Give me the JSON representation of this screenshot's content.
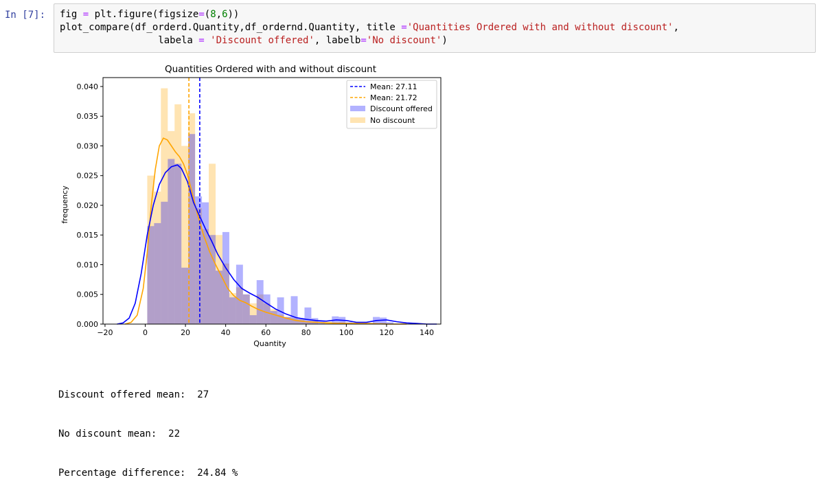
{
  "cell": {
    "prompt": "In [7]:",
    "code_lines": [
      [
        [
          "fig ",
          ""
        ],
        [
          "=",
          "kw"
        ],
        [
          " plt.figure(figsize",
          ""
        ],
        [
          "=",
          "kw"
        ],
        [
          "(",
          ""
        ],
        [
          "8",
          "num"
        ],
        [
          ",",
          ""
        ],
        [
          "6",
          "num"
        ],
        [
          "))",
          ""
        ]
      ],
      [
        [
          "plot_compare(df_orderd.Quantity,df_ordernd.Quantity, title ",
          ""
        ],
        [
          "=",
          "kw"
        ],
        [
          "'Quantities Ordered with and without discount'",
          "str"
        ],
        [
          ",",
          ""
        ]
      ],
      [
        [
          "                 labela ",
          ""
        ],
        [
          "=",
          "kw"
        ],
        [
          " ",
          ""
        ],
        [
          "'Discount offered'",
          "str"
        ],
        [
          ", labelb",
          ""
        ],
        [
          "=",
          "kw"
        ],
        [
          "'No discount'",
          "str"
        ],
        [
          ")",
          ""
        ]
      ]
    ]
  },
  "output_text": {
    "line1": "Discount offered mean:  27",
    "line2": "No discount mean:  22",
    "line3": "Percentage difference:  24.84 %"
  },
  "colors": {
    "discount": "#0000ff",
    "nodiscount": "#ffa500",
    "prompt": "#303f9f"
  },
  "chart_data": {
    "type": "bar",
    "title": "Quantities Ordered with and without discount",
    "xlabel": "Quantity",
    "ylabel": "frequency",
    "xlim": [
      -21,
      147
    ],
    "ylim": [
      0,
      0.0415
    ],
    "xticks": [
      -20,
      0,
      20,
      40,
      60,
      80,
      100,
      120,
      140
    ],
    "xtick_labels": [
      "−20",
      "0",
      "20",
      "40",
      "60",
      "80",
      "100",
      "120",
      "140"
    ],
    "yticks": [
      0.0,
      0.005,
      0.01,
      0.015,
      0.02,
      0.025,
      0.03,
      0.035,
      0.04
    ],
    "ytick_labels": [
      "0.000",
      "0.005",
      "0.010",
      "0.015",
      "0.020",
      "0.025",
      "0.030",
      "0.035",
      "0.040"
    ],
    "legend_position": "top-right",
    "legend": [
      "Mean: 27.11",
      "Mean: 21.72",
      "Discount offered",
      "No discount"
    ],
    "hist_bin_width": 3.4,
    "series": [
      {
        "name": "Discount offered",
        "mean": 27.11,
        "hist": [
          [
            1,
            0.0165
          ],
          [
            4.4,
            0.017
          ],
          [
            7.8,
            0.0206
          ],
          [
            11.2,
            0.0278
          ],
          [
            14.6,
            0.027
          ],
          [
            18,
            0.0095
          ],
          [
            21.4,
            0.032
          ],
          [
            24.8,
            0.0215
          ],
          [
            28.2,
            0.0205
          ],
          [
            31.6,
            0.015
          ],
          [
            35,
            0.009
          ],
          [
            38.4,
            0.0155
          ],
          [
            41.8,
            0.0045
          ],
          [
            45.2,
            0.01
          ],
          [
            48.6,
            0.005
          ],
          [
            52,
            0.0015
          ],
          [
            55.4,
            0.0074
          ],
          [
            58.8,
            0.005
          ],
          [
            62.2,
            0.0022
          ],
          [
            65.6,
            0.0045
          ],
          [
            69,
            0.0012
          ],
          [
            72.4,
            0.0047
          ],
          [
            75.8,
            0.001
          ],
          [
            79.2,
            0.0028
          ],
          [
            82.6,
            0.001
          ],
          [
            86,
            0.0005
          ],
          [
            92.8,
            0.0013
          ],
          [
            96.2,
            0.0012
          ],
          [
            99.6,
            0.0003
          ],
          [
            113.2,
            0.0012
          ],
          [
            116.6,
            0.0011
          ],
          [
            120,
            0.0003
          ]
        ],
        "kde": [
          [
            -14,
            0.0
          ],
          [
            -11,
            0.0002
          ],
          [
            -8,
            0.001
          ],
          [
            -5,
            0.0035
          ],
          [
            -2,
            0.0085
          ],
          [
            1,
            0.015
          ],
          [
            4,
            0.02
          ],
          [
            7,
            0.0235
          ],
          [
            10,
            0.0255
          ],
          [
            13,
            0.0265
          ],
          [
            16,
            0.0268
          ],
          [
            18,
            0.0262
          ],
          [
            21,
            0.024
          ],
          [
            24,
            0.0205
          ],
          [
            27,
            0.0182
          ],
          [
            30,
            0.016
          ],
          [
            33,
            0.014
          ],
          [
            36,
            0.0118
          ],
          [
            40,
            0.0095
          ],
          [
            44,
            0.0075
          ],
          [
            48,
            0.006
          ],
          [
            52,
            0.0052
          ],
          [
            56,
            0.0045
          ],
          [
            60,
            0.0036
          ],
          [
            65,
            0.0025
          ],
          [
            70,
            0.0017
          ],
          [
            75,
            0.0011
          ],
          [
            80,
            0.0008
          ],
          [
            85,
            0.0006
          ],
          [
            90,
            0.0005
          ],
          [
            95,
            0.0007
          ],
          [
            100,
            0.0006
          ],
          [
            105,
            0.0003
          ],
          [
            110,
            0.0003
          ],
          [
            115,
            0.0006
          ],
          [
            120,
            0.0007
          ],
          [
            125,
            0.0004
          ],
          [
            130,
            0.0002
          ],
          [
            135,
            0.0001
          ],
          [
            140,
            0.0
          ],
          [
            145,
            0.0
          ]
        ]
      },
      {
        "name": "No discount",
        "mean": 21.72,
        "hist": [
          [
            1,
            0.025
          ],
          [
            4.4,
            0.0223
          ],
          [
            7.8,
            0.0397
          ],
          [
            11.2,
            0.0325
          ],
          [
            14.6,
            0.037
          ],
          [
            18,
            0.03
          ],
          [
            21.4,
            0.0355
          ],
          [
            24.8,
            0.0195
          ],
          [
            28.2,
            0.016
          ],
          [
            31.6,
            0.027
          ],
          [
            35,
            0.015
          ],
          [
            38.4,
            0.0102
          ],
          [
            41.8,
            0.0052
          ],
          [
            45.2,
            0.0062
          ],
          [
            48.6,
            0.005
          ],
          [
            52,
            0.0035
          ],
          [
            55.4,
            0.005
          ],
          [
            58.8,
            0.0035
          ],
          [
            62.2,
            0.0025
          ],
          [
            65.6,
            0.0016
          ],
          [
            69,
            0.0012
          ],
          [
            72.4,
            0.001
          ],
          [
            75.8,
            0.0008
          ],
          [
            79.2,
            0.0005
          ],
          [
            82.6,
            0.0005
          ],
          [
            89.4,
            0.0004
          ],
          [
            96.2,
            0.0003
          ],
          [
            103,
            0.0002
          ],
          [
            116.6,
            0.0002
          ],
          [
            126.8,
            0.0002
          ]
        ],
        "kde": [
          [
            -10,
            0.0
          ],
          [
            -7,
            0.0003
          ],
          [
            -4,
            0.0015
          ],
          [
            -1,
            0.006
          ],
          [
            1,
            0.012
          ],
          [
            3,
            0.02
          ],
          [
            5,
            0.026
          ],
          [
            7,
            0.03
          ],
          [
            9,
            0.0313
          ],
          [
            11,
            0.031
          ],
          [
            13,
            0.03
          ],
          [
            15,
            0.029
          ],
          [
            17,
            0.0282
          ],
          [
            19,
            0.027
          ],
          [
            21,
            0.0252
          ],
          [
            23,
            0.0225
          ],
          [
            26,
            0.0185
          ],
          [
            29,
            0.015
          ],
          [
            32,
            0.0122
          ],
          [
            35,
            0.01
          ],
          [
            38,
            0.008
          ],
          [
            41,
            0.006
          ],
          [
            44,
            0.0048
          ],
          [
            47,
            0.004
          ],
          [
            50,
            0.0036
          ],
          [
            53,
            0.003
          ],
          [
            56,
            0.0025
          ],
          [
            60,
            0.002
          ],
          [
            65,
            0.0015
          ],
          [
            70,
            0.001
          ],
          [
            75,
            0.0006
          ],
          [
            80,
            0.0004
          ],
          [
            90,
            0.0002
          ],
          [
            100,
            0.0001
          ],
          [
            110,
            0.0001
          ],
          [
            120,
            0.0
          ],
          [
            130,
            0.0
          ]
        ]
      }
    ]
  }
}
